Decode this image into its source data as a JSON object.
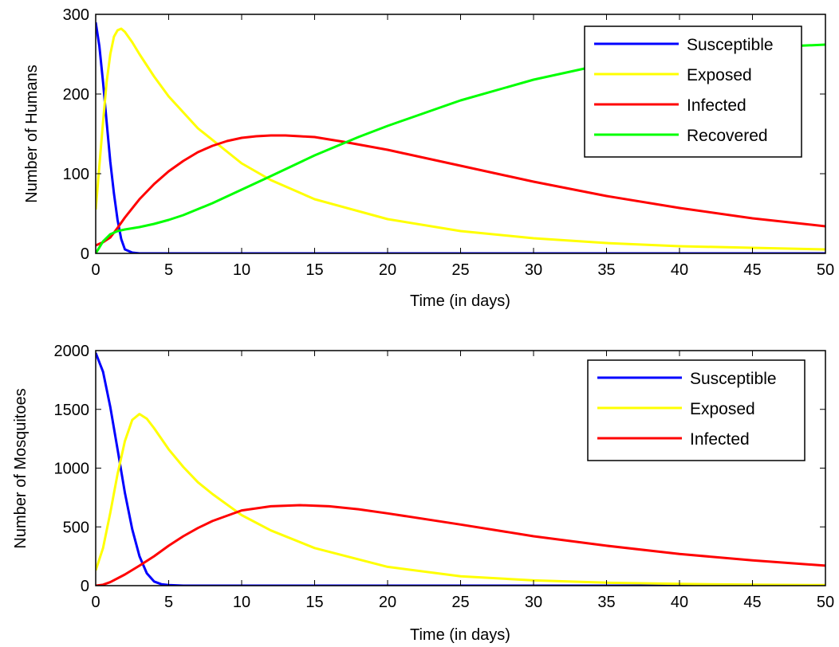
{
  "chart_data": [
    {
      "type": "line",
      "xlabel": "Time (in days)",
      "ylabel": "Number of Humans",
      "xlim": [
        0,
        50
      ],
      "ylim": [
        0,
        300
      ],
      "xticks": [
        "0",
        "5",
        "10",
        "15",
        "20",
        "25",
        "30",
        "35",
        "40",
        "45",
        "50"
      ],
      "yticks": [
        "0",
        "100",
        "200",
        "300"
      ],
      "legend_position": "top-right",
      "grid": false,
      "series": [
        {
          "name": "Susceptible",
          "color": "#0000ff",
          "x": [
            0,
            0.25,
            0.5,
            0.75,
            1,
            1.25,
            1.5,
            1.75,
            2,
            2.5,
            3,
            4,
            5,
            10,
            20,
            30,
            40,
            50
          ],
          "y": [
            290,
            260,
            215,
            165,
            115,
            75,
            42,
            18,
            5,
            1,
            0,
            0,
            0,
            0,
            0,
            0,
            0,
            0
          ]
        },
        {
          "name": "Exposed",
          "color": "#ffff00",
          "x": [
            0,
            0.25,
            0.5,
            0.75,
            1,
            1.25,
            1.5,
            1.75,
            2,
            2.5,
            3,
            4,
            5,
            7,
            10,
            12,
            15,
            20,
            25,
            30,
            35,
            40,
            45,
            50
          ],
          "y": [
            55,
            110,
            165,
            215,
            250,
            272,
            280,
            282,
            278,
            265,
            250,
            222,
            197,
            157,
            113,
            92,
            68,
            43,
            28,
            19,
            13,
            9,
            7,
            5
          ]
        },
        {
          "name": "Infected",
          "color": "#ff0000",
          "x": [
            0,
            0.5,
            1,
            1.5,
            2,
            3,
            4,
            5,
            6,
            7,
            8,
            9,
            10,
            11,
            12,
            13,
            14,
            15,
            17,
            20,
            25,
            30,
            35,
            40,
            45,
            50
          ],
          "y": [
            10,
            14,
            20,
            32,
            45,
            68,
            87,
            103,
            116,
            127,
            135,
            141,
            145,
            147,
            148,
            148,
            147,
            146,
            140,
            130,
            110,
            90,
            72,
            57,
            44,
            34
          ]
        },
        {
          "name": "Recovered",
          "color": "#00ff00",
          "x": [
            0,
            0.5,
            1,
            1.5,
            2,
            3,
            4,
            5,
            6,
            8,
            10,
            12,
            15,
            18,
            20,
            25,
            30,
            35,
            40,
            45,
            50
          ],
          "y": [
            0,
            15,
            24,
            28,
            30,
            33,
            37,
            42,
            48,
            63,
            80,
            97,
            123,
            146,
            160,
            192,
            218,
            238,
            250,
            258,
            262
          ]
        }
      ]
    },
    {
      "type": "line",
      "xlabel": "Time (in days)",
      "ylabel": "Number of Mosquitoes",
      "xlim": [
        0,
        50
      ],
      "ylim": [
        0,
        2000
      ],
      "xticks": [
        "0",
        "5",
        "10",
        "15",
        "20",
        "25",
        "30",
        "35",
        "40",
        "45",
        "50"
      ],
      "yticks": [
        "0",
        "500",
        "1000",
        "1500",
        "2000"
      ],
      "legend_position": "top-right",
      "grid": false,
      "series": [
        {
          "name": "Susceptible",
          "color": "#0000ff",
          "x": [
            0,
            0.5,
            1,
            1.5,
            2,
            2.5,
            3,
            3.5,
            4,
            4.5,
            5,
            6,
            10,
            20,
            30,
            40,
            50
          ],
          "y": [
            1980,
            1820,
            1520,
            1160,
            790,
            480,
            250,
            105,
            35,
            12,
            5,
            0,
            0,
            0,
            0,
            0,
            0
          ]
        },
        {
          "name": "Exposed",
          "color": "#ffff00",
          "x": [
            0,
            0.5,
            1,
            1.5,
            2,
            2.5,
            3,
            3.5,
            4,
            5,
            6,
            7,
            8,
            10,
            12,
            15,
            20,
            25,
            30,
            35,
            40,
            45,
            50
          ],
          "y": [
            130,
            320,
            620,
            950,
            1230,
            1410,
            1460,
            1420,
            1340,
            1160,
            1010,
            880,
            780,
            600,
            470,
            320,
            160,
            80,
            45,
            25,
            15,
            8,
            5
          ]
        },
        {
          "name": "Infected",
          "color": "#ff0000",
          "x": [
            0,
            0.5,
            1,
            2,
            3,
            4,
            5,
            6,
            7,
            8,
            10,
            12,
            14,
            16,
            18,
            20,
            25,
            30,
            35,
            40,
            45,
            50
          ],
          "y": [
            0,
            8,
            30,
            95,
            170,
            250,
            340,
            420,
            490,
            550,
            640,
            675,
            685,
            675,
            650,
            615,
            520,
            420,
            340,
            270,
            215,
            170
          ]
        }
      ]
    }
  ]
}
